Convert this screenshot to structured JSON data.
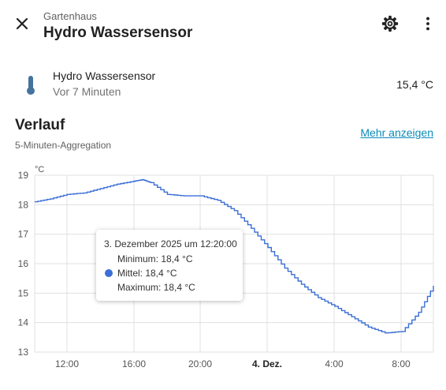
{
  "header": {
    "breadcrumb": "Gartenhaus",
    "title": "Hydro Wassersensor",
    "close_icon": "close-icon",
    "settings_icon": "gear-icon",
    "menu_icon": "more-vert-icon"
  },
  "sensor": {
    "name": "Hydro Wassersensor",
    "last_changed": "Vor 7 Minuten",
    "value": "15,4 °C",
    "icon": "thermometer-icon",
    "icon_color": "#44739e"
  },
  "history": {
    "title": "Verlauf",
    "subtitle": "5-Minuten-Aggregation",
    "more_link": "Mehr anzeigen"
  },
  "colors": {
    "series": "#3b6fd6",
    "link": "#0b8bba",
    "grid": "#e0e0e0"
  },
  "tooltip": {
    "title": "3. Dezember 2025 um 12:20:00",
    "minimum": "Minimum: 18,4 °C",
    "mean": "Mittel: 18,4 °C",
    "maximum": "Maximum: 18,4 °C"
  },
  "chart_data": {
    "type": "line",
    "title": "",
    "xlabel": "",
    "ylabel": "°C",
    "unit": "°C",
    "ylim": [
      13,
      19
    ],
    "y_ticks": [
      "19",
      "18",
      "17",
      "16",
      "15",
      "14",
      "13"
    ],
    "x_tick_labels": [
      "12:00",
      "16:00",
      "20:00",
      "4. Dez.",
      "4:00",
      "8:00"
    ],
    "grid": true,
    "series": [
      {
        "x": [
          "3.12. 10:00",
          "3.12. 11:00",
          "3.12. 12:00",
          "3.12. 13:00",
          "3.12. 14:00",
          "3.12. 15:00",
          "3.12. 16:00",
          "3.12. 16:30",
          "3.12. 17:00",
          "3.12. 18:00",
          "3.12. 19:00",
          "3.12. 20:00",
          "3.12. 21:00",
          "3.12. 22:00",
          "3.12. 23:00",
          "4.12. 00:00",
          "4.12. 01:00",
          "4.12. 02:00",
          "4.12. 03:00",
          "4.12. 04:00",
          "4.12. 05:00",
          "4.12. 06:00",
          "4.12. 07:00",
          "4.12. 08:00",
          "4.12. 09:00",
          "4.12. 10:00"
        ],
        "values": [
          18.1,
          18.2,
          18.35,
          18.4,
          18.55,
          18.7,
          18.8,
          18.85,
          18.75,
          18.35,
          18.3,
          18.3,
          18.15,
          17.8,
          17.2,
          16.55,
          15.85,
          15.3,
          14.85,
          14.55,
          14.2,
          13.85,
          13.65,
          13.7,
          14.35,
          15.25
        ]
      }
    ]
  }
}
